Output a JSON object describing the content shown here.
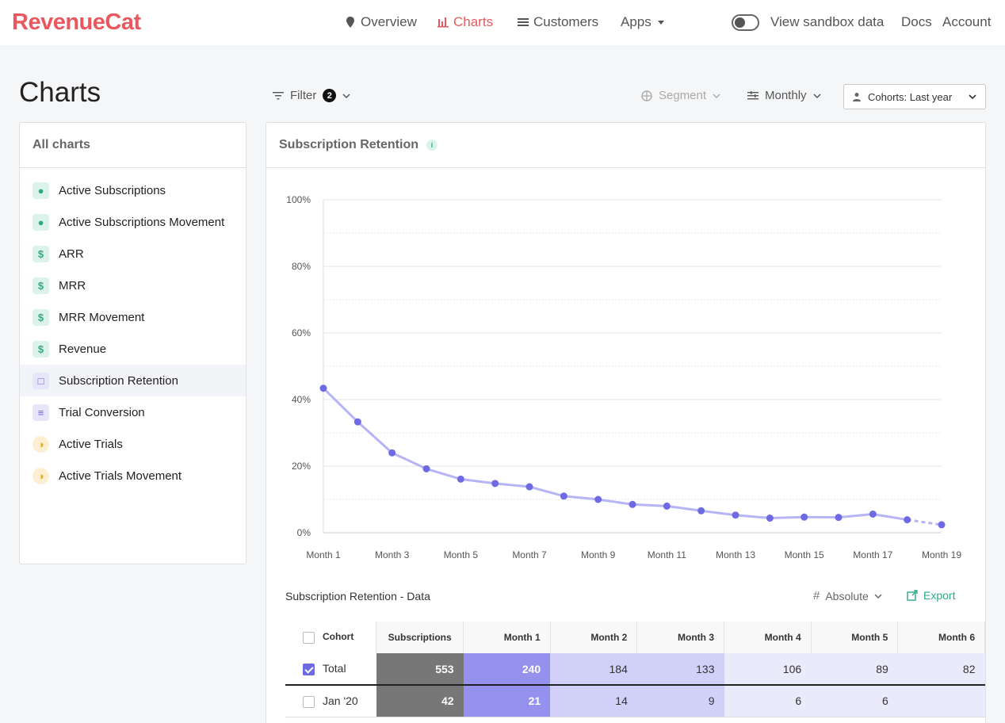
{
  "app": {
    "logo": "RevenueCat"
  },
  "nav": {
    "items": [
      {
        "label": "Overview",
        "icon": "map-pin-icon"
      },
      {
        "label": "Charts",
        "icon": "bar-chart-icon",
        "active": true
      },
      {
        "label": "Customers",
        "icon": "list-icon"
      },
      {
        "label": "Apps",
        "icon": "caret-down-icon"
      }
    ],
    "sandbox_label": "View sandbox data",
    "docs": "Docs",
    "account": "Account"
  },
  "page": {
    "title": "Charts",
    "filter_label": "Filter",
    "filter_count": "2",
    "segment_label": "Segment",
    "resolution_label": "Monthly",
    "cohort_select": "Cohorts: Last year"
  },
  "sidebar": {
    "title": "All charts",
    "items": [
      {
        "label": "Active Subscriptions",
        "icon": "person-icon",
        "color": "green"
      },
      {
        "label": "Active Subscriptions Movement",
        "icon": "person-icon",
        "color": "green"
      },
      {
        "label": "ARR",
        "icon": "dollar-icon",
        "color": "green"
      },
      {
        "label": "MRR",
        "icon": "dollar-icon",
        "color": "green"
      },
      {
        "label": "MRR Movement",
        "icon": "dollar-icon",
        "color": "green"
      },
      {
        "label": "Revenue",
        "icon": "dollar-icon",
        "color": "green"
      },
      {
        "label": "Subscription Retention",
        "icon": "calendar-icon",
        "color": "purple",
        "active": true
      },
      {
        "label": "Trial Conversion",
        "icon": "filter-icon",
        "color": "purple"
      },
      {
        "label": "Active Trials",
        "icon": "clock-icon",
        "color": "yellow"
      },
      {
        "label": "Active Trials Movement",
        "icon": "clock-icon",
        "color": "yellow"
      }
    ]
  },
  "main": {
    "title": "Subscription Retention",
    "info": "i",
    "data_title": "Subscription Retention - Data",
    "mode_label": "Absolute",
    "export_label": "Export"
  },
  "chart_data": {
    "type": "line",
    "x": [
      "Month 1",
      "Month 2",
      "Month 3",
      "Month 4",
      "Month 5",
      "Month 6",
      "Month 7",
      "Month 8",
      "Month 9",
      "Month 10",
      "Month 11",
      "Month 12",
      "Month 13",
      "Month 14",
      "Month 15",
      "Month 16",
      "Month 17",
      "Month 18",
      "Month 19"
    ],
    "x_tick_labels": [
      "Month 1",
      "Month 3",
      "Month 5",
      "Month 7",
      "Month 9",
      "Month 11",
      "Month 13",
      "Month 15",
      "Month 17",
      "Month 19"
    ],
    "y_tick_labels": [
      "100%",
      "80%",
      "60%",
      "40%",
      "20%",
      "0%"
    ],
    "values": [
      43.4,
      33.3,
      24.0,
      19.2,
      16.1,
      14.8,
      13.8,
      11.0,
      10.0,
      8.5,
      8.0,
      6.6,
      5.3,
      4.4,
      4.7,
      4.6,
      5.6,
      3.9,
      2.4
    ],
    "projected_last": true,
    "ylim": [
      0,
      100
    ],
    "grid": true,
    "color": "#6e6ae3"
  },
  "table": {
    "headers": [
      "Cohort",
      "Subscriptions",
      "Month 1",
      "Month 2",
      "Month 3",
      "Month 4",
      "Month 5",
      "Month 6"
    ],
    "rows": [
      {
        "cohort": "Total",
        "checked": true,
        "values": [
          "553",
          "240",
          "184",
          "133",
          "106",
          "89",
          "82"
        ]
      },
      {
        "cohort": "Jan '20",
        "checked": false,
        "values": [
          "42",
          "21",
          "14",
          "9",
          "6",
          "6",
          ""
        ]
      }
    ],
    "colors": {
      "subs_bg": "#777777",
      "m1_bg": "#9592ee",
      "m2_bg": "#d1d0f8",
      "m3_bg": "#d1d0f8",
      "m4_bg": "#eaeafb",
      "m5_bg": "#eaeafb",
      "m6_bg": "#eaeafb"
    }
  }
}
